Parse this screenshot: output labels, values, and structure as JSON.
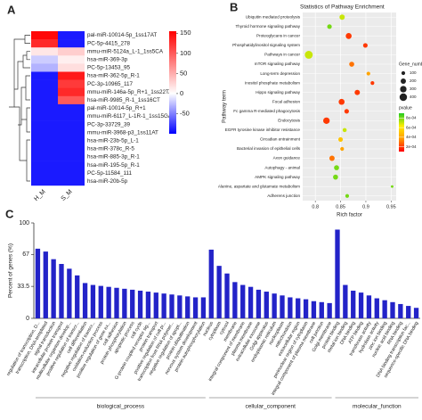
{
  "chart_data": [
    {
      "type": "heatmap",
      "panel": "A",
      "rows": [
        "pal-miR-10014-5p_1ss17AT",
        "PC-5p-4415_278",
        "mmu-miR-5124a_L-1_1ss5CA",
        "hsa-miR-369-3p",
        "PC-5p-13453_95",
        "hsa-miR-362-5p_R-1",
        "PC-3p-10965_117",
        "mmu-miR-146a-5p_R+1_1ss22TA",
        "hsa-miR-9985_R-1_1ss16CT",
        "pal-miR-10014-5p_R+1",
        "mmu-miR-6117_L-1R-1_1ss15GA",
        "PC-3p-33729_39",
        "mmu-miR-3968-p3_1ss11AT",
        "hsa-miR-23b-5p_L-1",
        "hsa-miR-378c_R-5",
        "hsa-miR-885-3p_R-1",
        "hsa-miR-195-5p_R-1",
        "PC-5p-11584_111",
        "hsa-miR-20b-5p"
      ],
      "columns": [
        "H_M",
        "S_M"
      ],
      "values": [
        [
          150,
          -90
        ],
        [
          130,
          -90
        ],
        [
          15,
          30
        ],
        [
          -20,
          10
        ],
        [
          -30,
          20
        ],
        [
          -90,
          140
        ],
        [
          -90,
          120
        ],
        [
          -90,
          130
        ],
        [
          -90,
          100
        ],
        [
          -90,
          -90
        ],
        [
          -90,
          -90
        ],
        [
          -90,
          -90
        ],
        [
          -90,
          -90
        ],
        [
          -90,
          -90
        ],
        [
          -90,
          -90
        ],
        [
          -90,
          -90
        ],
        [
          -90,
          -90
        ],
        [
          -90,
          -90
        ],
        [
          -90,
          -90
        ]
      ],
      "zlim": [
        -100,
        155
      ],
      "zticks": [
        150,
        100,
        50,
        0,
        -50
      ],
      "colors": [
        "#0000ff",
        "#ffffff",
        "#ff0000"
      ]
    },
    {
      "type": "dot",
      "panel": "B",
      "title": "Statistics of Pathway Enrichment",
      "xlabel": "Rich factor",
      "ylabel": "Pathway term",
      "categories": [
        "Ubiquitin mediated proteolysis",
        "Thyroid hormone signaling pathway",
        "Proteoglycans in cancer",
        "Phosphatidylinositol signaling system",
        "Pathways in cancer",
        "mTOR signaling pathway",
        "Long-term depression",
        "Inositol phosphate metabolism",
        "Hippo signaling pathway",
        "Focal adhesion",
        "Fc gamma R-mediated phagocytosis",
        "Endocytosis",
        "EGFR tyrosine kinase inhibitor resistance",
        "Circadian entrainment",
        "Bacterial invasion of epithelial cells",
        "Axon guidance",
        "Autophagy - animal",
        "AMPK signaling pathway",
        "Alanine, aspartate and glutamate metabolism",
        "Adherens junction"
      ],
      "values": [
        0.853,
        0.828,
        0.866,
        0.899,
        0.787,
        0.872,
        0.905,
        0.913,
        0.883,
        0.852,
        0.862,
        0.822,
        0.858,
        0.85,
        0.853,
        0.833,
        0.842,
        0.84,
        0.952,
        0.863
      ],
      "sizes": [
        200,
        150,
        250,
        150,
        450,
        180,
        100,
        100,
        200,
        250,
        150,
        300,
        120,
        150,
        100,
        200,
        180,
        180,
        50,
        100
      ],
      "pvalues": [
        0.0007,
        0.0008,
        0.0002,
        0.0002,
        0.0007,
        0.0003,
        0.0004,
        0.0002,
        0.0002,
        0.0002,
        0.0002,
        0.0002,
        0.0007,
        0.0005,
        0.0004,
        0.0003,
        0.0008,
        0.0008,
        0.0008,
        0.0008
      ],
      "xlim": [
        0.775,
        0.96
      ],
      "xticks": [
        0.8,
        0.85,
        0.9,
        0.95
      ],
      "size_legend_title": "Gene_number",
      "size_legend": [
        100,
        200,
        300,
        400
      ],
      "color_legend_title": "pvalue",
      "clim": [
        0.0001,
        0.0009
      ],
      "cticks": [
        {
          "value": 0.0008,
          "label": "8e-04"
        },
        {
          "value": 0.0006,
          "label": "6e-04"
        },
        {
          "value": 0.0004,
          "label": "4e-04"
        },
        {
          "value": 0.0002,
          "label": "2e-04"
        }
      ],
      "colors": [
        "#ff0000",
        "#ff9900",
        "#ffee00",
        "#22cc22"
      ]
    },
    {
      "type": "bar",
      "panel": "C",
      "ylabel": "Percent of genes (%)",
      "ylim": [
        0,
        100
      ],
      "yticks": [
        0,
        33.5,
        67,
        100
      ],
      "color": "#2323c8",
      "groups": [
        {
          "name": "biological_process",
          "categories": [
            "regulation of transcription, D...",
            "transcription, DNA-templated",
            "signal transduction",
            "intracellular protein transport",
            "multicellular organism develop...",
            "positive regulation of transcr...",
            "cell differentiation",
            "negative regulation of transcr...",
            "oxidation-reduction process",
            "positive regulation of gene ex...",
            "cell adhesion",
            "protein phosphorylation",
            "apoptotic process",
            "cell cycle",
            "G-protein coupled receptor sig...",
            "protein transport",
            "positive regulation of cell pr...",
            "transcription from RNA polymer...",
            "negative regulation of apopt...",
            "protein ubiquitination",
            "nervous system development",
            "protein autophosphorylation"
          ],
          "values": [
            73,
            70,
            62,
            57,
            52,
            45,
            37,
            35,
            34,
            33,
            32,
            31,
            30,
            29,
            28,
            27,
            26,
            25,
            24,
            23,
            22,
            22
          ]
        },
        {
          "name": "cellular_component",
          "categories": [
            "nucleus",
            "cytoplasm",
            "cytosol",
            "membrane",
            "integral component of membrane",
            "plasma membrane",
            "extracellular exosome",
            "Golgi apparatus",
            "endoplasmic reticulum",
            "nucleoplasm",
            "mitochondrion",
            "extracellular region",
            "perinuclear region of cytoplasm",
            "integral component of plasma membrane",
            "cell junction",
            "Golgi membrane"
          ],
          "values": [
            72,
            55,
            47,
            38,
            35,
            33,
            30,
            28,
            26,
            24,
            22,
            21,
            20,
            18,
            17,
            16
          ]
        },
        {
          "name": "molecular_function",
          "categories": [
            "protein binding",
            "metal ion binding",
            "DNA binding",
            "ATP binding",
            "transferase activity",
            "hydrolase activity",
            "zinc ion binding",
            "nucleic acid binding",
            "RNA binding",
            "DNA binding transcription fac...",
            "sequence-specific DNA binding"
          ],
          "values": [
            93,
            35,
            29,
            27,
            24,
            21,
            19,
            17,
            15,
            13,
            11
          ]
        }
      ]
    }
  ]
}
